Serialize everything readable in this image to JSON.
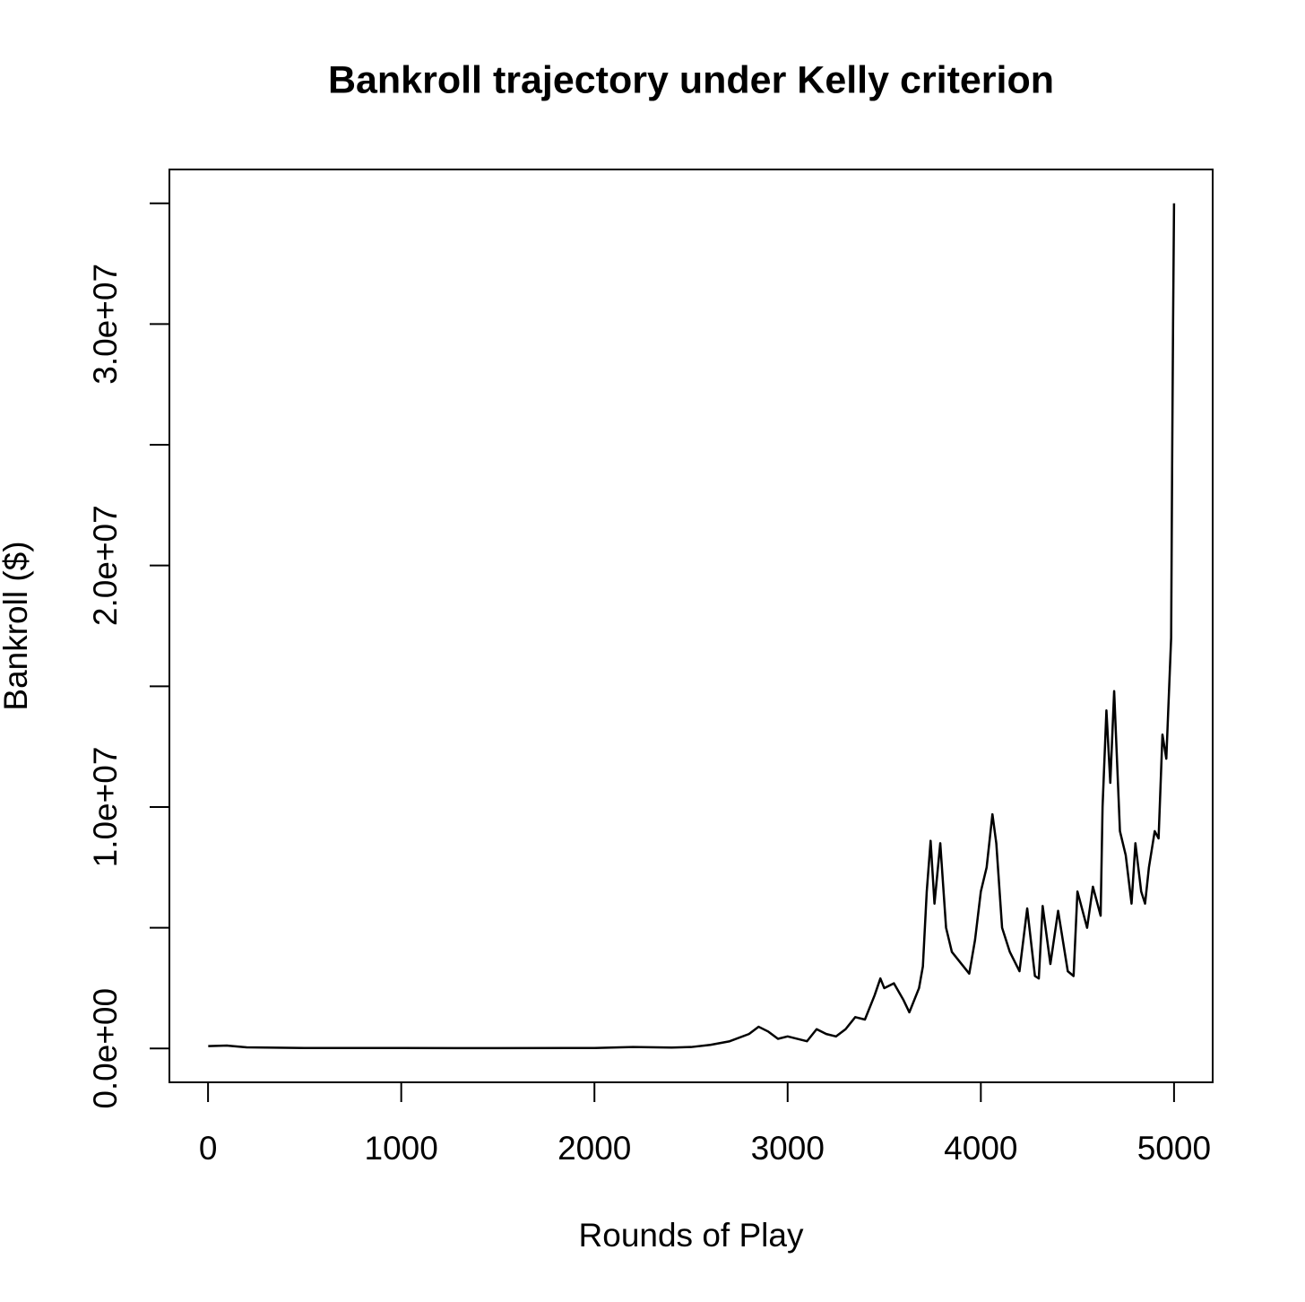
{
  "chart_data": {
    "type": "line",
    "title": "Bankroll trajectory under Kelly criterion",
    "x_label": "Rounds of Play",
    "y_label": "Bankroll ($)",
    "xlim": [
      -200,
      5200
    ],
    "ylim": [
      -1400000,
      36400000
    ],
    "xticks": [
      0,
      1000,
      2000,
      3000,
      4000,
      5000
    ],
    "yticks": [
      {
        "value": 0,
        "label": "0.0e+00"
      },
      {
        "value": 10000000,
        "label": "1.0e+07"
      },
      {
        "value": 20000000,
        "label": "2.0e+07"
      },
      {
        "value": 30000000,
        "label": "3.0e+07"
      }
    ],
    "yticks_minor": [
      5000000,
      15000000,
      25000000,
      35000000
    ],
    "color": "#000000",
    "x": [
      1,
      100,
      200,
      500,
      1000,
      1500,
      2000,
      2200,
      2400,
      2500,
      2600,
      2700,
      2800,
      2850,
      2900,
      2950,
      3000,
      3100,
      3150,
      3200,
      3250,
      3300,
      3350,
      3400,
      3450,
      3480,
      3500,
      3550,
      3600,
      3630,
      3680,
      3700,
      3720,
      3740,
      3760,
      3790,
      3820,
      3850,
      3900,
      3940,
      3970,
      4000,
      4030,
      4060,
      4080,
      4110,
      4150,
      4200,
      4240,
      4280,
      4300,
      4320,
      4360,
      4400,
      4450,
      4480,
      4500,
      4550,
      4580,
      4620,
      4630,
      4650,
      4670,
      4690,
      4720,
      4750,
      4780,
      4800,
      4830,
      4850,
      4870,
      4900,
      4920,
      4940,
      4960,
      4970,
      4985,
      4990,
      4995,
      5000
    ],
    "values": [
      100000,
      120000,
      50000,
      20000,
      20000,
      15000,
      20000,
      60000,
      40000,
      60000,
      150000,
      300000,
      600000,
      900000,
      700000,
      400000,
      500000,
      300000,
      800000,
      600000,
      500000,
      800000,
      1300000,
      1200000,
      2200000,
      2900000,
      2500000,
      2700000,
      2000000,
      1500000,
      2500000,
      3400000,
      6500000,
      8600000,
      6000000,
      8500000,
      5000000,
      4000000,
      3500000,
      3100000,
      4500000,
      6500000,
      7500000,
      9700000,
      8500000,
      5000000,
      4000000,
      3200000,
      5800000,
      3000000,
      2900000,
      5900000,
      3500000,
      5700000,
      3200000,
      3000000,
      6500000,
      5000000,
      6700000,
      5500000,
      10000000,
      14000000,
      11000000,
      14800000,
      9000000,
      8000000,
      6000000,
      8500000,
      6500000,
      6000000,
      7500000,
      9000000,
      8700000,
      13000000,
      12000000,
      14000000,
      17000000,
      24000000,
      30000000,
      35000000
    ]
  }
}
